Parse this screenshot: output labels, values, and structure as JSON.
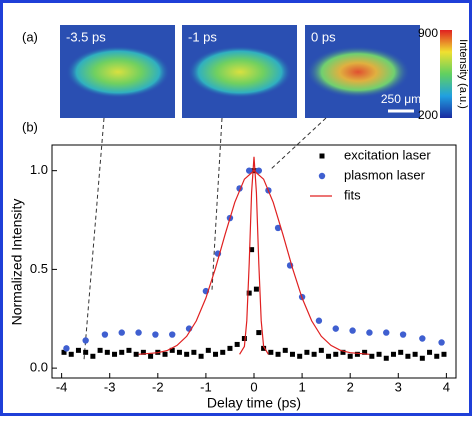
{
  "panel_a": {
    "label": "(a)",
    "images": [
      {
        "label": "-3.5 ps"
      },
      {
        "label": "-1 ps"
      },
      {
        "label": "0 ps"
      }
    ],
    "scale_bar": "250 μm",
    "colorbar": {
      "max": "900",
      "min": "200",
      "label": "Intensity (a.u.)"
    }
  },
  "chart_data": {
    "type": "scatter",
    "panel_label": "(b)",
    "x_label": "Delay time (ps)",
    "y_label": "Normalized Intensity",
    "xlim": [
      -4.2,
      4.2
    ],
    "ylim": [
      -0.05,
      1.13
    ],
    "xticks": [
      -4,
      -3,
      -2,
      -1,
      0,
      1,
      2,
      3,
      4
    ],
    "yticks": [
      {
        "value": 0,
        "label": "0.0"
      },
      {
        "value": 0.5,
        "label": "0.5"
      },
      {
        "value": 1,
        "label": "1.0"
      }
    ],
    "legend": "upper right",
    "series": [
      {
        "name": "excitation laser",
        "color": "#000000",
        "marker": "square",
        "x": [
          -3.95,
          -3.8,
          -3.65,
          -3.5,
          -3.35,
          -3.2,
          -3.05,
          -2.9,
          -2.75,
          -2.6,
          -2.45,
          -2.3,
          -2.15,
          -2.0,
          -1.85,
          -1.7,
          -1.55,
          -1.4,
          -1.25,
          -1.1,
          -0.95,
          -0.8,
          -0.65,
          -0.5,
          -0.35,
          -0.2,
          -0.1,
          -0.05,
          0,
          0.05,
          0.1,
          0.2,
          0.35,
          0.5,
          0.65,
          0.8,
          0.95,
          1.1,
          1.25,
          1.4,
          1.55,
          1.7,
          1.85,
          2.0,
          2.15,
          2.3,
          2.45,
          2.6,
          2.75,
          2.9,
          3.05,
          3.2,
          3.35,
          3.5,
          3.65,
          3.8,
          3.95
        ],
        "values": [
          0.08,
          0.07,
          0.09,
          0.08,
          0.06,
          0.09,
          0.08,
          0.07,
          0.08,
          0.09,
          0.07,
          0.08,
          0.06,
          0.08,
          0.07,
          0.09,
          0.08,
          0.07,
          0.08,
          0.06,
          0.09,
          0.07,
          0.08,
          0.1,
          0.12,
          0.15,
          0.38,
          0.6,
          1.0,
          0.4,
          0.18,
          0.1,
          0.08,
          0.07,
          0.09,
          0.07,
          0.06,
          0.08,
          0.07,
          0.09,
          0.06,
          0.07,
          0.08,
          0.06,
          0.07,
          0.08,
          0.06,
          0.07,
          0.05,
          0.07,
          0.08,
          0.06,
          0.07,
          0.05,
          0.08,
          0.06,
          0.07
        ]
      },
      {
        "name": "plasmon laser",
        "color": "#3f5fd0",
        "marker": "circle",
        "x": [
          -3.9,
          -3.5,
          -3.1,
          -2.75,
          -2.4,
          -2.05,
          -1.7,
          -1.35,
          -1.0,
          -0.75,
          -0.5,
          -0.3,
          -0.1,
          0.1,
          0.3,
          0.5,
          0.75,
          1.0,
          1.35,
          1.7,
          2.05,
          2.4,
          2.75,
          3.1,
          3.5,
          3.9
        ],
        "values": [
          0.1,
          0.14,
          0.17,
          0.18,
          0.18,
          0.17,
          0.17,
          0.2,
          0.39,
          0.58,
          0.76,
          0.91,
          1.0,
          1.0,
          0.9,
          0.71,
          0.52,
          0.36,
          0.24,
          0.2,
          0.19,
          0.18,
          0.18,
          0.17,
          0.15,
          0.13
        ]
      },
      {
        "name": "fits",
        "color": "#e02020",
        "marker": "line",
        "x": [
          -2.4,
          -2.0,
          -1.8,
          -1.6,
          -1.4,
          -1.2,
          -1.0,
          -0.8,
          -0.6,
          -0.4,
          -0.2,
          0,
          0.2,
          0.4,
          0.6,
          0.8,
          1.0,
          1.2,
          1.4,
          1.6,
          1.8,
          2.0,
          2.4,
          null,
          -0.3,
          -0.2,
          -0.15,
          -0.1,
          -0.05,
          0,
          0.05,
          0.1,
          0.15,
          0.2,
          0.3
        ],
        "values": [
          0.07,
          0.078,
          0.09,
          0.115,
          0.161,
          0.239,
          0.355,
          0.506,
          0.677,
          0.84,
          0.957,
          1.0,
          0.957,
          0.84,
          0.677,
          0.506,
          0.355,
          0.239,
          0.161,
          0.115,
          0.09,
          0.078,
          0.07,
          null,
          0.07,
          0.11,
          0.24,
          0.53,
          0.89,
          1.07,
          0.89,
          0.53,
          0.24,
          0.11,
          0.07
        ]
      }
    ]
  }
}
